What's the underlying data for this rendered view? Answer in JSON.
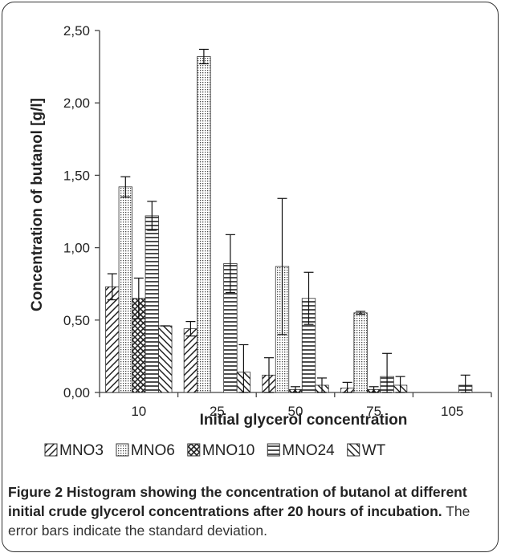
{
  "chart_data": {
    "type": "bar",
    "title": "",
    "xlabel": "Initial glycerol concentration",
    "ylabel": "Concentration of butanol [g/l]",
    "ylim": [
      0,
      2.5
    ],
    "yticks": [
      "0,00",
      "0,50",
      "1,00",
      "1,50",
      "2,00",
      "2,50"
    ],
    "categories": [
      "10",
      "25",
      "50",
      "75",
      "105"
    ],
    "legend_position": "bottom",
    "grid": false,
    "series": [
      {
        "name": "MNO3",
        "pattern": "diag-right",
        "values": [
          0.73,
          0.44,
          0.12,
          0.03,
          0
        ],
        "errors": [
          0.09,
          0.05,
          0.12,
          0.04,
          0
        ]
      },
      {
        "name": "MNO6",
        "pattern": "dots",
        "values": [
          1.42,
          2.32,
          0.87,
          0.55,
          0
        ],
        "errors": [
          0.07,
          0.05,
          0.47,
          0.01,
          0
        ]
      },
      {
        "name": "MNO10",
        "pattern": "cross",
        "values": [
          0.65,
          0,
          0.02,
          0.02,
          0
        ],
        "errors": [
          0.14,
          0,
          0.02,
          0.02,
          0
        ]
      },
      {
        "name": "MNO24",
        "pattern": "horizontal",
        "values": [
          1.22,
          0.89,
          0.65,
          0.11,
          0.05
        ],
        "errors": [
          0.1,
          0.2,
          0.18,
          0.16,
          0.07
        ]
      },
      {
        "name": "WT",
        "pattern": "diag-left",
        "values": [
          0.46,
          0.14,
          0.05,
          0.05,
          0
        ],
        "errors": [
          0,
          0.19,
          0.05,
          0.06,
          0
        ]
      }
    ]
  },
  "caption": {
    "figure_label": "Figure 2 Histogram showing the concentration of butanol at different initial crude glycerol concentrations after 20 hours of incubation.",
    "text": " The error bars indicate the standard deviation."
  }
}
